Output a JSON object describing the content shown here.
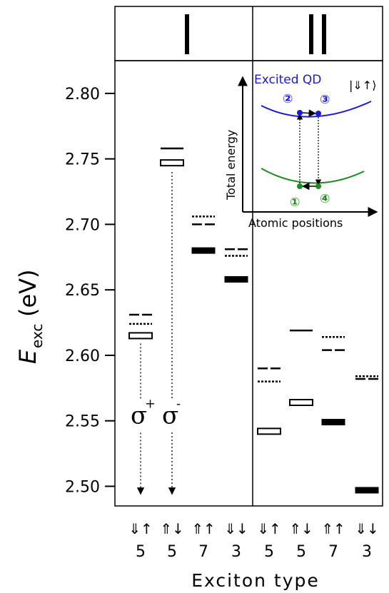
{
  "chart_data": {
    "type": "energy-level diagram",
    "ylabel": "E",
    "ylabel_sub": "exc",
    "ylabel_unit": "(eV)",
    "xlabel": "Exciton type",
    "ylim": [
      2.485,
      2.825
    ],
    "yticks": [
      "2.50",
      "2.55",
      "2.60",
      "2.65",
      "2.70",
      "2.75",
      "2.80"
    ],
    "ytick_values": [
      2.5,
      2.55,
      2.6,
      2.65,
      2.7,
      2.75,
      2.8
    ],
    "panels": [
      "I",
      "II"
    ],
    "columns": [
      {
        "panel": "I",
        "spin": "⇓↑",
        "number": "5"
      },
      {
        "panel": "I",
        "spin": "⇑↓",
        "number": "5"
      },
      {
        "panel": "I",
        "spin": "⇑↑",
        "number": "7"
      },
      {
        "panel": "I",
        "spin": "⇓↓",
        "number": "3"
      },
      {
        "panel": "II",
        "spin": "⇓↑",
        "number": "5"
      },
      {
        "panel": "II",
        "spin": "⇑↓",
        "number": "5"
      },
      {
        "panel": "II",
        "spin": "⇑↑",
        "number": "7"
      },
      {
        "panel": "II",
        "spin": "⇓↓",
        "number": "3"
      }
    ],
    "levels": [
      {
        "col": 0,
        "energy": 2.631,
        "style": "dashed"
      },
      {
        "col": 0,
        "energy": 2.624,
        "style": "dotted"
      },
      {
        "col": 0,
        "energy": 2.615,
        "style": "open"
      },
      {
        "col": 1,
        "energy": 2.758,
        "style": "solid"
      },
      {
        "col": 1,
        "energy": 2.747,
        "style": "open"
      },
      {
        "col": 2,
        "energy": 2.706,
        "style": "dotted"
      },
      {
        "col": 2,
        "energy": 2.7,
        "style": "dashed"
      },
      {
        "col": 2,
        "energy": 2.68,
        "style": "filled"
      },
      {
        "col": 3,
        "energy": 2.681,
        "style": "dashed"
      },
      {
        "col": 3,
        "energy": 2.676,
        "style": "dotted"
      },
      {
        "col": 3,
        "energy": 2.658,
        "style": "filled"
      },
      {
        "col": 4,
        "energy": 2.59,
        "style": "dashed"
      },
      {
        "col": 4,
        "energy": 2.58,
        "style": "dotted"
      },
      {
        "col": 4,
        "energy": 2.542,
        "style": "open"
      },
      {
        "col": 5,
        "energy": 2.619,
        "style": "solid"
      },
      {
        "col": 5,
        "energy": 2.564,
        "style": "open"
      },
      {
        "col": 6,
        "energy": 2.614,
        "style": "dotted"
      },
      {
        "col": 6,
        "energy": 2.604,
        "style": "dashed"
      },
      {
        "col": 6,
        "energy": 2.549,
        "style": "filled"
      },
      {
        "col": 7,
        "energy": 2.584,
        "style": "dotted"
      },
      {
        "col": 7,
        "energy": 2.582,
        "style": "dashed"
      },
      {
        "col": 7,
        "energy": 2.497,
        "style": "filled"
      }
    ],
    "emission_arrows": [
      {
        "col": 0,
        "from_energy": 2.609,
        "to_energy": 2.494,
        "label": "σ",
        "superscript": "+"
      },
      {
        "col": 1,
        "from_energy": 2.74,
        "to_energy": 2.494,
        "label": "σ",
        "superscript": "-"
      }
    ]
  },
  "inset": {
    "title": "Excited QD",
    "ket": "|⇓↑⟩",
    "ylabel": "Total energy",
    "xlabel": "Atomic positions",
    "points": [
      {
        "id": "1",
        "label": "①",
        "curve": "ground"
      },
      {
        "id": "2",
        "label": "②",
        "curve": "excited"
      },
      {
        "id": "3",
        "label": "③",
        "curve": "excited"
      },
      {
        "id": "4",
        "label": "④",
        "curve": "ground"
      }
    ],
    "colors": {
      "excited": "#1a1ad6",
      "ground": "#1e8c1e"
    }
  }
}
